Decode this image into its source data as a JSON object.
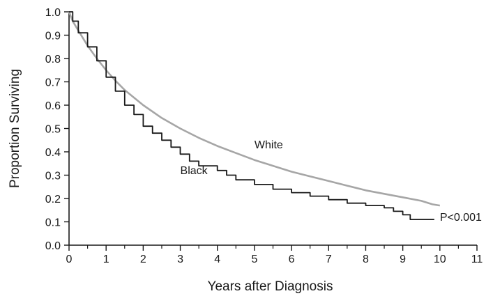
{
  "chart_data": {
    "type": "line",
    "xlabel": "Years after Diagnosis",
    "ylabel": "Proportion Surviving",
    "xlim": [
      0,
      11
    ],
    "ylim": [
      0,
      1.0
    ],
    "x_ticks": [
      "0",
      "1",
      "2",
      "3",
      "4",
      "5",
      "6",
      "7",
      "8",
      "9",
      "10",
      "11"
    ],
    "y_ticks": [
      "0.0",
      "0.1",
      "0.2",
      "0.3",
      "0.4",
      "0.5",
      "0.6",
      "0.7",
      "0.8",
      "0.9",
      "1.0"
    ],
    "grid": false,
    "legend": "none",
    "series": [
      {
        "name": "White",
        "color": "#a6a6a6",
        "step": false,
        "x": [
          0,
          0.1,
          0.25,
          0.5,
          0.75,
          1.0,
          1.25,
          1.5,
          2.0,
          2.5,
          3.0,
          3.5,
          4.0,
          4.5,
          5.0,
          5.5,
          6.0,
          6.5,
          7.0,
          7.5,
          8.0,
          8.5,
          9.0,
          9.5,
          9.8,
          10.0
        ],
        "y": [
          1.0,
          0.96,
          0.92,
          0.855,
          0.8,
          0.75,
          0.705,
          0.665,
          0.6,
          0.545,
          0.5,
          0.46,
          0.425,
          0.395,
          0.365,
          0.34,
          0.315,
          0.295,
          0.275,
          0.255,
          0.235,
          0.22,
          0.205,
          0.19,
          0.175,
          0.17
        ]
      },
      {
        "name": "Black",
        "color": "#1a1a1a",
        "step": true,
        "x": [
          0,
          0.1,
          0.25,
          0.5,
          0.75,
          1.0,
          1.25,
          1.5,
          1.75,
          2.0,
          2.25,
          2.5,
          2.75,
          3.0,
          3.25,
          3.5,
          4.0,
          4.25,
          4.5,
          5.0,
          5.5,
          6.0,
          6.5,
          7.0,
          7.5,
          8.0,
          8.5,
          8.75,
          9.0,
          9.2,
          9.85
        ],
        "y": [
          1.0,
          0.96,
          0.91,
          0.85,
          0.79,
          0.72,
          0.66,
          0.6,
          0.56,
          0.51,
          0.48,
          0.45,
          0.42,
          0.39,
          0.36,
          0.34,
          0.32,
          0.3,
          0.28,
          0.26,
          0.24,
          0.225,
          0.21,
          0.195,
          0.18,
          0.17,
          0.16,
          0.145,
          0.13,
          0.11,
          0.11
        ]
      }
    ],
    "annotations": [
      {
        "text": "White",
        "x": 5.0,
        "y": 0.415
      },
      {
        "text": "Black",
        "x": 3.0,
        "y": 0.305
      },
      {
        "text": "P<0.001",
        "x": 10.0,
        "y": 0.105
      }
    ]
  }
}
